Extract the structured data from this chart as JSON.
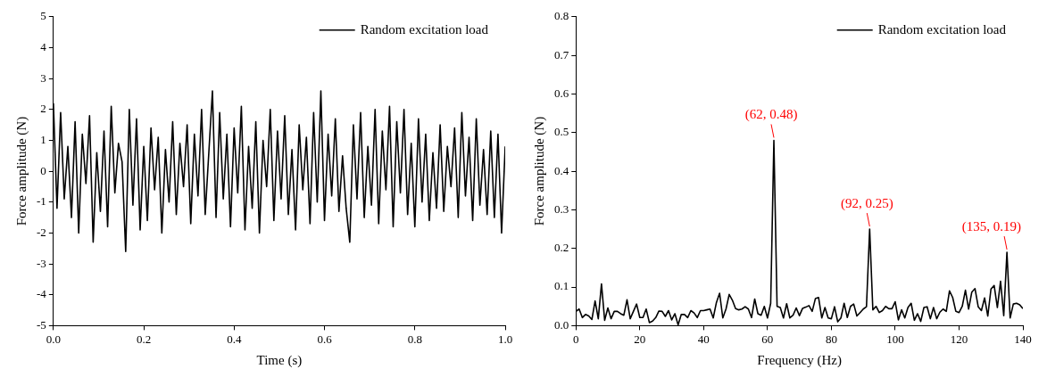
{
  "chart_data": [
    {
      "type": "line",
      "xlabel": "Time (s)",
      "ylabel": "Force amplitude (N)",
      "x": [
        0,
        0.008,
        0.016,
        0.024,
        0.032,
        0.04,
        0.048,
        0.056,
        0.064,
        0.072,
        0.08,
        0.088,
        0.096,
        0.104,
        0.112,
        0.12,
        0.128,
        0.136,
        0.144,
        0.152,
        0.16,
        0.168,
        0.176,
        0.184,
        0.192,
        0.2,
        0.208,
        0.216,
        0.224,
        0.232,
        0.24,
        0.248,
        0.256,
        0.264,
        0.272,
        0.28,
        0.288,
        0.296,
        0.304,
        0.312,
        0.32,
        0.328,
        0.336,
        0.344,
        0.352,
        0.36,
        0.368,
        0.376,
        0.384,
        0.392,
        0.4,
        0.408,
        0.416,
        0.424,
        0.432,
        0.44,
        0.448,
        0.456,
        0.464,
        0.472,
        0.48,
        0.488,
        0.496,
        0.504,
        0.512,
        0.52,
        0.528,
        0.536,
        0.544,
        0.552,
        0.56,
        0.568,
        0.576,
        0.584,
        0.592,
        0.6,
        0.608,
        0.616,
        0.624,
        0.632,
        0.64,
        0.648,
        0.656,
        0.664,
        0.672,
        0.68,
        0.688,
        0.696,
        0.704,
        0.712,
        0.72,
        0.728,
        0.736,
        0.744,
        0.752,
        0.76,
        0.768,
        0.776,
        0.784,
        0.792,
        0.8,
        0.808,
        0.816,
        0.824,
        0.832,
        0.84,
        0.848,
        0.856,
        0.864,
        0.872,
        0.88,
        0.888,
        0.896,
        0.904,
        0.912,
        0.92,
        0.928,
        0.936,
        0.944,
        0.952,
        0.96,
        0.968,
        0.976,
        0.984,
        0.992,
        1.0
      ],
      "series": [
        {
          "name": "Random excitation load",
          "color": "#000000",
          "values": [
            2.2,
            -1.2,
            1.9,
            -0.9,
            0.8,
            -1.5,
            1.6,
            -2.0,
            1.2,
            -0.4,
            1.8,
            -2.3,
            0.6,
            -1.3,
            1.3,
            -1.8,
            2.1,
            -0.7,
            0.9,
            0.3,
            -2.6,
            2.0,
            -1.1,
            1.7,
            -1.9,
            0.8,
            -1.6,
            1.4,
            -0.6,
            1.1,
            -2.0,
            0.7,
            -1.0,
            1.6,
            -1.4,
            0.9,
            -0.5,
            1.5,
            -1.7,
            1.2,
            -0.8,
            2.0,
            -1.4,
            0.6,
            2.6,
            -1.5,
            1.9,
            -0.9,
            1.2,
            -1.8,
            1.4,
            -0.7,
            2.1,
            -1.9,
            0.8,
            -1.2,
            1.6,
            -2.0,
            1.0,
            -0.5,
            2.0,
            -1.6,
            1.3,
            -0.9,
            1.8,
            -1.4,
            0.7,
            -1.9,
            1.5,
            -0.6,
            1.1,
            -1.7,
            1.9,
            -1.0,
            2.6,
            -1.6,
            1.2,
            -0.8,
            1.7,
            -1.3,
            0.5,
            -1.2,
            -2.3,
            1.5,
            -0.9,
            1.9,
            -1.5,
            0.8,
            -1.1,
            2.0,
            -1.7,
            1.3,
            -0.6,
            2.1,
            -1.8,
            1.6,
            -0.7,
            2.0,
            -1.4,
            0.9,
            -1.8,
            1.7,
            -1.0,
            1.2,
            -1.6,
            0.6,
            -1.2,
            1.5,
            -1.3,
            0.8,
            -0.5,
            1.4,
            -1.5,
            1.9,
            -0.8,
            1.1,
            -1.6,
            1.7,
            -1.1,
            0.7,
            -1.4,
            1.3,
            -1.5,
            1.2,
            -2.0,
            0.8
          ]
        }
      ],
      "xlim": [
        0,
        1.0
      ],
      "xticks": [
        {
          "value": 0,
          "label": "0.0"
        },
        {
          "value": 0.2,
          "label": "0.2"
        },
        {
          "value": 0.4,
          "label": "0.4"
        },
        {
          "value": 0.6,
          "label": "0.6"
        },
        {
          "value": 0.8,
          "label": "0.8"
        },
        {
          "value": 1.0,
          "label": "1.0"
        }
      ],
      "ylim": [
        -5,
        5
      ],
      "yticks": [
        -5,
        -4,
        -3,
        -2,
        -1,
        0,
        1,
        2,
        3,
        4,
        5
      ],
      "legend": "top right",
      "grid": false,
      "marker": "none",
      "line_style": "solid"
    },
    {
      "type": "line",
      "xlabel": "Frequency (Hz)",
      "ylabel": "Force amplitude (N)",
      "x": [
        0,
        1,
        2,
        3,
        4,
        5,
        6,
        7,
        8,
        9,
        10,
        11,
        12,
        13,
        14,
        15,
        16,
        17,
        18,
        19,
        20,
        21,
        22,
        23,
        24,
        25,
        26,
        27,
        28,
        29,
        30,
        31,
        32,
        33,
        34,
        35,
        36,
        37,
        38,
        39,
        40,
        41,
        42,
        43,
        44,
        45,
        46,
        47,
        48,
        49,
        50,
        51,
        52,
        53,
        54,
        55,
        56,
        57,
        58,
        59,
        60,
        61,
        62,
        63,
        64,
        65,
        66,
        67,
        68,
        69,
        70,
        71,
        72,
        73,
        74,
        75,
        76,
        77,
        78,
        79,
        80,
        81,
        82,
        83,
        84,
        85,
        86,
        87,
        88,
        89,
        90,
        91,
        92,
        93,
        94,
        95,
        96,
        97,
        98,
        99,
        100,
        101,
        102,
        103,
        104,
        105,
        106,
        107,
        108,
        109,
        110,
        111,
        112,
        113,
        114,
        115,
        116,
        117,
        118,
        119,
        120,
        121,
        122,
        123,
        124,
        125,
        126,
        127,
        128,
        129,
        130,
        131,
        132,
        133,
        134,
        135,
        136,
        137,
        138,
        139,
        140
      ],
      "series": [
        {
          "name": "Random excitation load",
          "color": "#000000",
          "values": [
            0.037,
            0.043,
            0.021,
            0.029,
            0.025,
            0.016,
            0.064,
            0.018,
            0.108,
            0.014,
            0.046,
            0.018,
            0.037,
            0.037,
            0.031,
            0.027,
            0.067,
            0.018,
            0.037,
            0.056,
            0.021,
            0.021,
            0.043,
            0.008,
            0.012,
            0.021,
            0.038,
            0.037,
            0.024,
            0.039,
            0.015,
            0.031,
            0.002,
            0.029,
            0.029,
            0.021,
            0.039,
            0.033,
            0.021,
            0.039,
            0.039,
            0.041,
            0.043,
            0.02,
            0.06,
            0.084,
            0.02,
            0.043,
            0.081,
            0.066,
            0.044,
            0.041,
            0.043,
            0.049,
            0.043,
            0.021,
            0.069,
            0.031,
            0.027,
            0.05,
            0.02,
            0.058,
            0.48,
            0.05,
            0.047,
            0.02,
            0.057,
            0.02,
            0.027,
            0.046,
            0.026,
            0.045,
            0.048,
            0.052,
            0.037,
            0.07,
            0.073,
            0.02,
            0.047,
            0.02,
            0.018,
            0.049,
            0.01,
            0.02,
            0.058,
            0.021,
            0.05,
            0.056,
            0.025,
            0.034,
            0.043,
            0.049,
            0.25,
            0.041,
            0.05,
            0.034,
            0.039,
            0.05,
            0.044,
            0.044,
            0.062,
            0.015,
            0.041,
            0.02,
            0.047,
            0.058,
            0.014,
            0.031,
            0.011,
            0.047,
            0.049,
            0.018,
            0.047,
            0.018,
            0.035,
            0.043,
            0.037,
            0.09,
            0.073,
            0.037,
            0.034,
            0.05,
            0.092,
            0.043,
            0.087,
            0.096,
            0.049,
            0.039,
            0.072,
            0.025,
            0.095,
            0.104,
            0.047,
            0.115,
            0.026,
            0.19,
            0.02,
            0.056,
            0.058,
            0.054,
            0.044
          ]
        }
      ],
      "xlim": [
        0,
        140
      ],
      "xticks": [
        0,
        20,
        40,
        60,
        80,
        100,
        120,
        140
      ],
      "ylim": [
        0,
        0.8
      ],
      "yticks": [
        {
          "value": 0,
          "label": "0.0"
        },
        {
          "value": 0.1,
          "label": "0.1"
        },
        {
          "value": 0.2,
          "label": "0.2"
        },
        {
          "value": 0.3,
          "label": "0.3"
        },
        {
          "value": 0.4,
          "label": "0.4"
        },
        {
          "value": 0.5,
          "label": "0.5"
        },
        {
          "value": 0.6,
          "label": "0.6"
        },
        {
          "value": 0.7,
          "label": "0.7"
        },
        {
          "value": 0.8,
          "label": "0.8"
        }
      ],
      "annotations": [
        {
          "text": "(62, 0.48)",
          "x": 62,
          "y": 0.48
        },
        {
          "text": "(92, 0.25)",
          "x": 92,
          "y": 0.25
        },
        {
          "text": "(135, 0.19)",
          "x": 135,
          "y": 0.19
        }
      ],
      "legend": "top right",
      "grid": false,
      "marker": "none",
      "line_style": "solid"
    }
  ]
}
